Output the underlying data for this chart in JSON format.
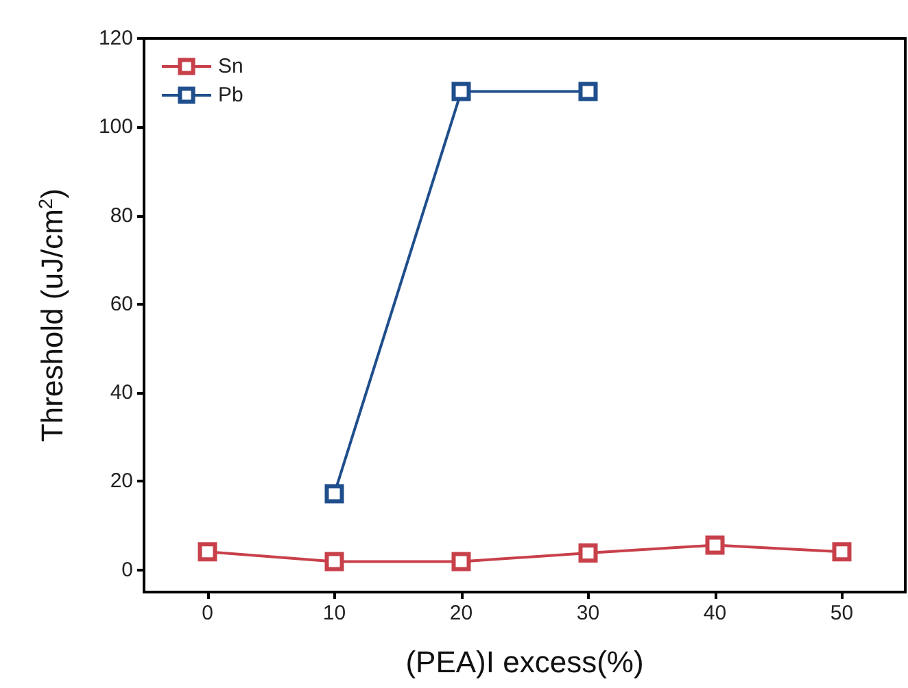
{
  "chart_data": {
    "type": "line",
    "xlabel": "(PEA)I excess(%)",
    "ylabel": "Threshold (uJ/cm$^{2}$)",
    "x": [
      0,
      10,
      20,
      30,
      40,
      50
    ],
    "series": [
      {
        "name": "Sn",
        "color": "#c8404a",
        "values": [
          4.1,
          1.9,
          1.9,
          3.8,
          5.6,
          4.1
        ]
      },
      {
        "name": "Pb",
        "color": "#1f4e8c",
        "values": [
          null,
          17.2,
          108,
          108,
          null,
          null
        ]
      }
    ],
    "xlim": [
      -5,
      55
    ],
    "xticks": [
      0,
      10,
      20,
      30,
      40,
      50
    ],
    "ylim": [
      -5,
      120
    ],
    "yticks": [
      0,
      20,
      40,
      60,
      80,
      100,
      120
    ],
    "grid": false,
    "legend": "top left",
    "marker": "square",
    "line_style": "solid"
  }
}
